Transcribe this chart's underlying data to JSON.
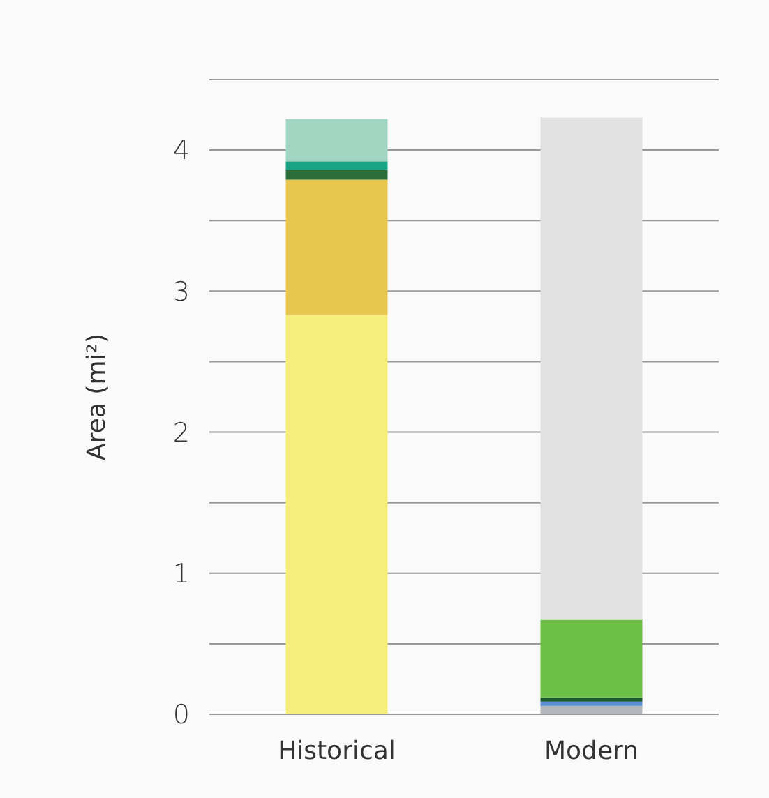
{
  "chart_data": {
    "type": "bar",
    "stacked": true,
    "ylabel": "Area (mi²)",
    "categories": [
      "Historical",
      "Modern"
    ],
    "series": [
      {
        "color": "#f6ee7a",
        "values": [
          2.83,
          0
        ]
      },
      {
        "color": "#e9c64e",
        "values": [
          0.96,
          0
        ]
      },
      {
        "color": "#2b6e3a",
        "values": [
          0.07,
          0
        ]
      },
      {
        "color": "#1aa585",
        "values": [
          0.06,
          0
        ]
      },
      {
        "color": "#a0d6c2",
        "values": [
          0.3,
          0
        ]
      },
      {
        "color": "#b4b8bc",
        "values": [
          0,
          0.06
        ]
      },
      {
        "color": "#5b8fd0",
        "values": [
          0,
          0.03
        ]
      },
      {
        "color": "#1c5a2e",
        "values": [
          0,
          0.03
        ]
      },
      {
        "color": "#6bbf45",
        "values": [
          0,
          0.55
        ]
      },
      {
        "color": "#e1e1e1",
        "values": [
          0,
          3.56
        ]
      }
    ],
    "ylim": [
      0,
      4.5
    ],
    "yticks": [
      0,
      {
        "value": 0.5,
        "label": null
      },
      1,
      {
        "value": 1.5,
        "label": null
      },
      2,
      {
        "value": 2.5,
        "label": null
      },
      3,
      {
        "value": 3.5,
        "label": null
      },
      4,
      {
        "value": 4.5,
        "label": null
      }
    ],
    "grid": "y"
  }
}
